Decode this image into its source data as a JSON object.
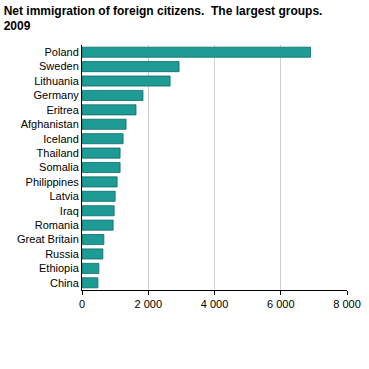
{
  "chart_data": {
    "type": "bar",
    "orientation": "horizontal",
    "title": [
      "Net immigration of foreign citizens.  The largest groups.",
      "2009"
    ],
    "categories": [
      "Poland",
      "Sweden",
      "Lithuania",
      "Germany",
      "Eritrea",
      "Afghanistan",
      "Iceland",
      "Thailand",
      "Somalia",
      "Philippines",
      "Latvia",
      "Iraq",
      "Romania",
      "Great Britain",
      "Russia",
      "Ethiopia",
      "China"
    ],
    "values": [
      6900,
      2930,
      2660,
      1840,
      1630,
      1330,
      1240,
      1150,
      1150,
      1060,
      1000,
      970,
      940,
      660,
      630,
      510,
      480
    ],
    "color": "#1f9b96",
    "xlim": [
      0,
      8000
    ],
    "xticks": [
      0,
      {
        "value": 2000,
        "label": "2 000"
      },
      {
        "value": 4000,
        "label": "4 000"
      },
      {
        "value": 6000,
        "label": "6 000"
      },
      {
        "value": 8000,
        "label": "8 000"
      }
    ],
    "grid": true
  }
}
